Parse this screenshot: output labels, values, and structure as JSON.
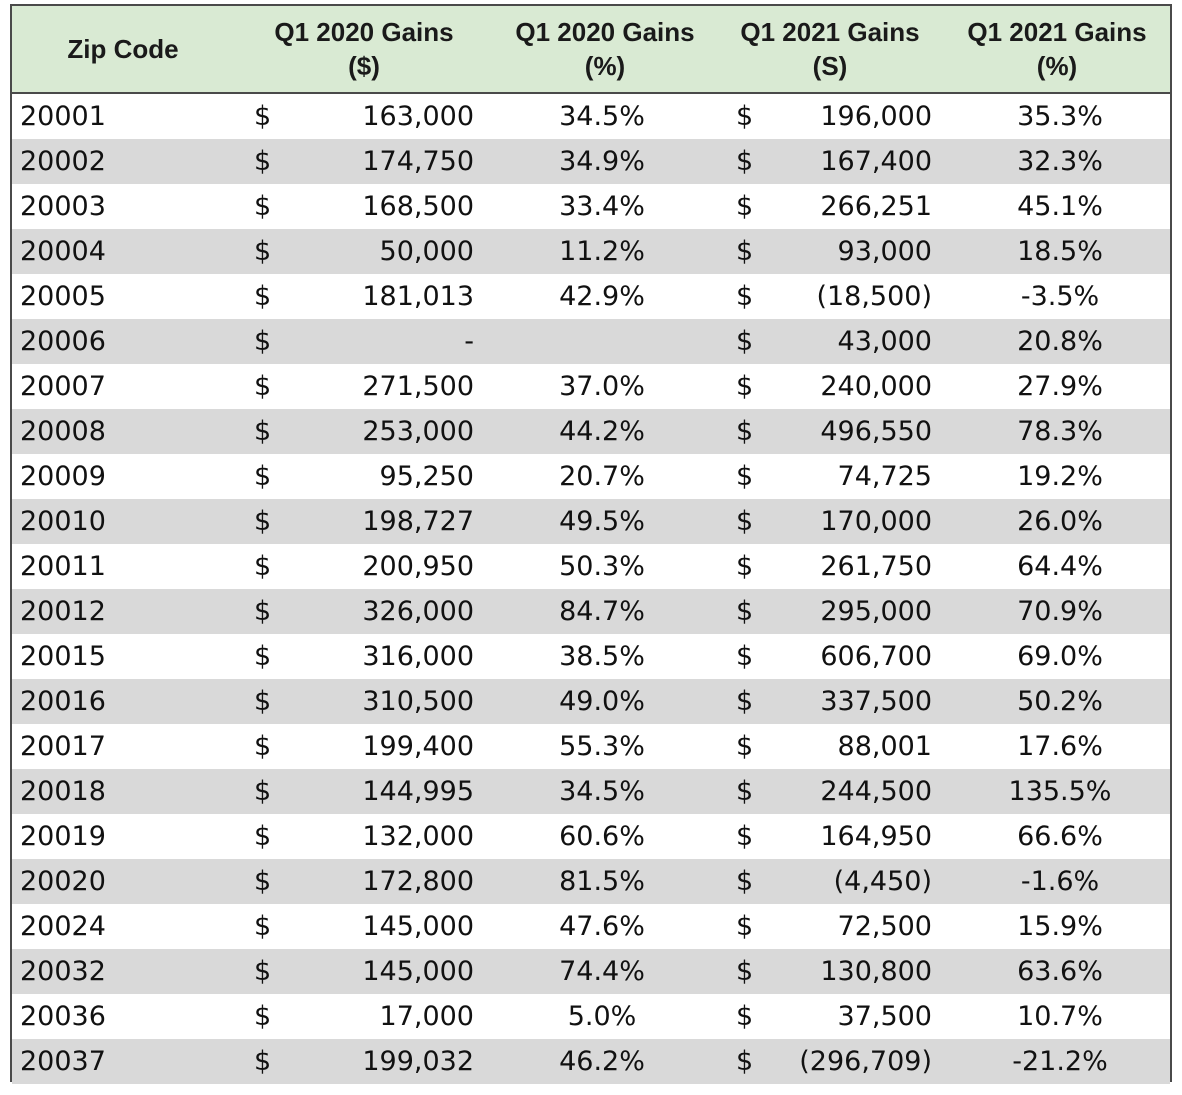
{
  "table": {
    "header_bg": "#d9ead3",
    "alt_row_bg": "#d9d9d9",
    "headers": {
      "zip": "Zip Code",
      "q1_2020_dollar_line1": "Q1 2020 Gains",
      "q1_2020_dollar_line2": "($)",
      "q1_2020_pct_line1": "Q1 2020 Gains",
      "q1_2020_pct_line2": "(%)",
      "q1_2021_dollar_line1": "Q1 2021 Gains",
      "q1_2021_dollar_line2": "(S)",
      "q1_2021_pct_line1": "Q1 2021 Gains",
      "q1_2021_pct_line2": "(%)"
    },
    "currency_symbol": "$",
    "rows": [
      {
        "zip": "20001",
        "q1_2020_dollar": "163,000",
        "q1_2020_pct": "34.5%",
        "q1_2021_dollar": "196,000",
        "q1_2021_pct": "35.3%"
      },
      {
        "zip": "20002",
        "q1_2020_dollar": "174,750",
        "q1_2020_pct": "34.9%",
        "q1_2021_dollar": "167,400",
        "q1_2021_pct": "32.3%"
      },
      {
        "zip": "20003",
        "q1_2020_dollar": "168,500",
        "q1_2020_pct": "33.4%",
        "q1_2021_dollar": "266,251",
        "q1_2021_pct": "45.1%"
      },
      {
        "zip": "20004",
        "q1_2020_dollar": "50,000",
        "q1_2020_pct": "11.2%",
        "q1_2021_dollar": "93,000",
        "q1_2021_pct": "18.5%"
      },
      {
        "zip": "20005",
        "q1_2020_dollar": "181,013",
        "q1_2020_pct": "42.9%",
        "q1_2021_dollar": "(18,500)",
        "q1_2021_pct": "-3.5%"
      },
      {
        "zip": "20006",
        "q1_2020_dollar": "-",
        "q1_2020_pct": "",
        "q1_2021_dollar": "43,000",
        "q1_2021_pct": "20.8%"
      },
      {
        "zip": "20007",
        "q1_2020_dollar": "271,500",
        "q1_2020_pct": "37.0%",
        "q1_2021_dollar": "240,000",
        "q1_2021_pct": "27.9%"
      },
      {
        "zip": "20008",
        "q1_2020_dollar": "253,000",
        "q1_2020_pct": "44.2%",
        "q1_2021_dollar": "496,550",
        "q1_2021_pct": "78.3%"
      },
      {
        "zip": "20009",
        "q1_2020_dollar": "95,250",
        "q1_2020_pct": "20.7%",
        "q1_2021_dollar": "74,725",
        "q1_2021_pct": "19.2%"
      },
      {
        "zip": "20010",
        "q1_2020_dollar": "198,727",
        "q1_2020_pct": "49.5%",
        "q1_2021_dollar": "170,000",
        "q1_2021_pct": "26.0%"
      },
      {
        "zip": "20011",
        "q1_2020_dollar": "200,950",
        "q1_2020_pct": "50.3%",
        "q1_2021_dollar": "261,750",
        "q1_2021_pct": "64.4%"
      },
      {
        "zip": "20012",
        "q1_2020_dollar": "326,000",
        "q1_2020_pct": "84.7%",
        "q1_2021_dollar": "295,000",
        "q1_2021_pct": "70.9%"
      },
      {
        "zip": "20015",
        "q1_2020_dollar": "316,000",
        "q1_2020_pct": "38.5%",
        "q1_2021_dollar": "606,700",
        "q1_2021_pct": "69.0%"
      },
      {
        "zip": "20016",
        "q1_2020_dollar": "310,500",
        "q1_2020_pct": "49.0%",
        "q1_2021_dollar": "337,500",
        "q1_2021_pct": "50.2%"
      },
      {
        "zip": "20017",
        "q1_2020_dollar": "199,400",
        "q1_2020_pct": "55.3%",
        "q1_2021_dollar": "88,001",
        "q1_2021_pct": "17.6%"
      },
      {
        "zip": "20018",
        "q1_2020_dollar": "144,995",
        "q1_2020_pct": "34.5%",
        "q1_2021_dollar": "244,500",
        "q1_2021_pct": "135.5%"
      },
      {
        "zip": "20019",
        "q1_2020_dollar": "132,000",
        "q1_2020_pct": "60.6%",
        "q1_2021_dollar": "164,950",
        "q1_2021_pct": "66.6%"
      },
      {
        "zip": "20020",
        "q1_2020_dollar": "172,800",
        "q1_2020_pct": "81.5%",
        "q1_2021_dollar": "(4,450)",
        "q1_2021_pct": "-1.6%"
      },
      {
        "zip": "20024",
        "q1_2020_dollar": "145,000",
        "q1_2020_pct": "47.6%",
        "q1_2021_dollar": "72,500",
        "q1_2021_pct": "15.9%"
      },
      {
        "zip": "20032",
        "q1_2020_dollar": "145,000",
        "q1_2020_pct": "74.4%",
        "q1_2021_dollar": "130,800",
        "q1_2021_pct": "63.6%"
      },
      {
        "zip": "20036",
        "q1_2020_dollar": "17,000",
        "q1_2020_pct": "5.0%",
        "q1_2021_dollar": "37,500",
        "q1_2021_pct": "10.7%"
      },
      {
        "zip": "20037",
        "q1_2020_dollar": "199,032",
        "q1_2020_pct": "46.2%",
        "q1_2021_dollar": "(296,709)",
        "q1_2021_pct": "-21.2%"
      }
    ]
  }
}
